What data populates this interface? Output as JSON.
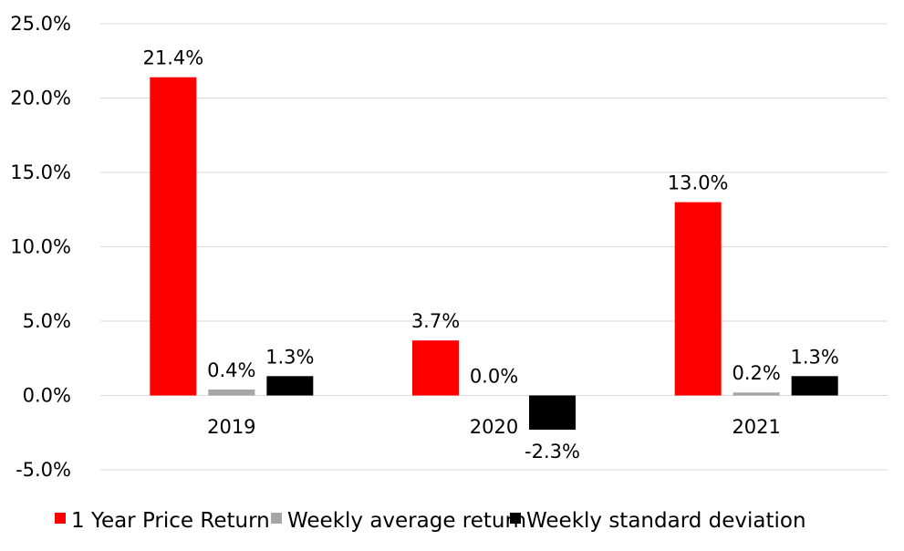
{
  "chart_data": {
    "type": "bar",
    "categories": [
      "2019",
      "2020",
      "2021"
    ],
    "series": [
      {
        "name": "1 Year Price Return",
        "values": [
          21.4,
          3.7,
          13.0
        ],
        "labels": [
          "21.4%",
          "3.7%",
          "13.0%"
        ],
        "color": "#ff0000"
      },
      {
        "name": "Weekly average return",
        "values": [
          0.4,
          0.0,
          0.2
        ],
        "labels": [
          "0.4%",
          "0.0%",
          "0.2%"
        ],
        "color": "#a6a6a6"
      },
      {
        "name": "Weekly standard deviation",
        "values": [
          1.3,
          -2.3,
          1.3
        ],
        "labels": [
          "1.3%",
          "-2.3%",
          "1.3%"
        ],
        "color": "#000000"
      }
    ],
    "ylim": [
      -5,
      25
    ],
    "yticks": [
      25,
      20,
      15,
      10,
      5,
      0,
      -5
    ],
    "ytick_labels": [
      "25.0%",
      "20.0%",
      "15.0%",
      "10.0%",
      "5.0%",
      "0.0%",
      "-5.0%"
    ],
    "grid": true,
    "legend_position": "bottom"
  }
}
